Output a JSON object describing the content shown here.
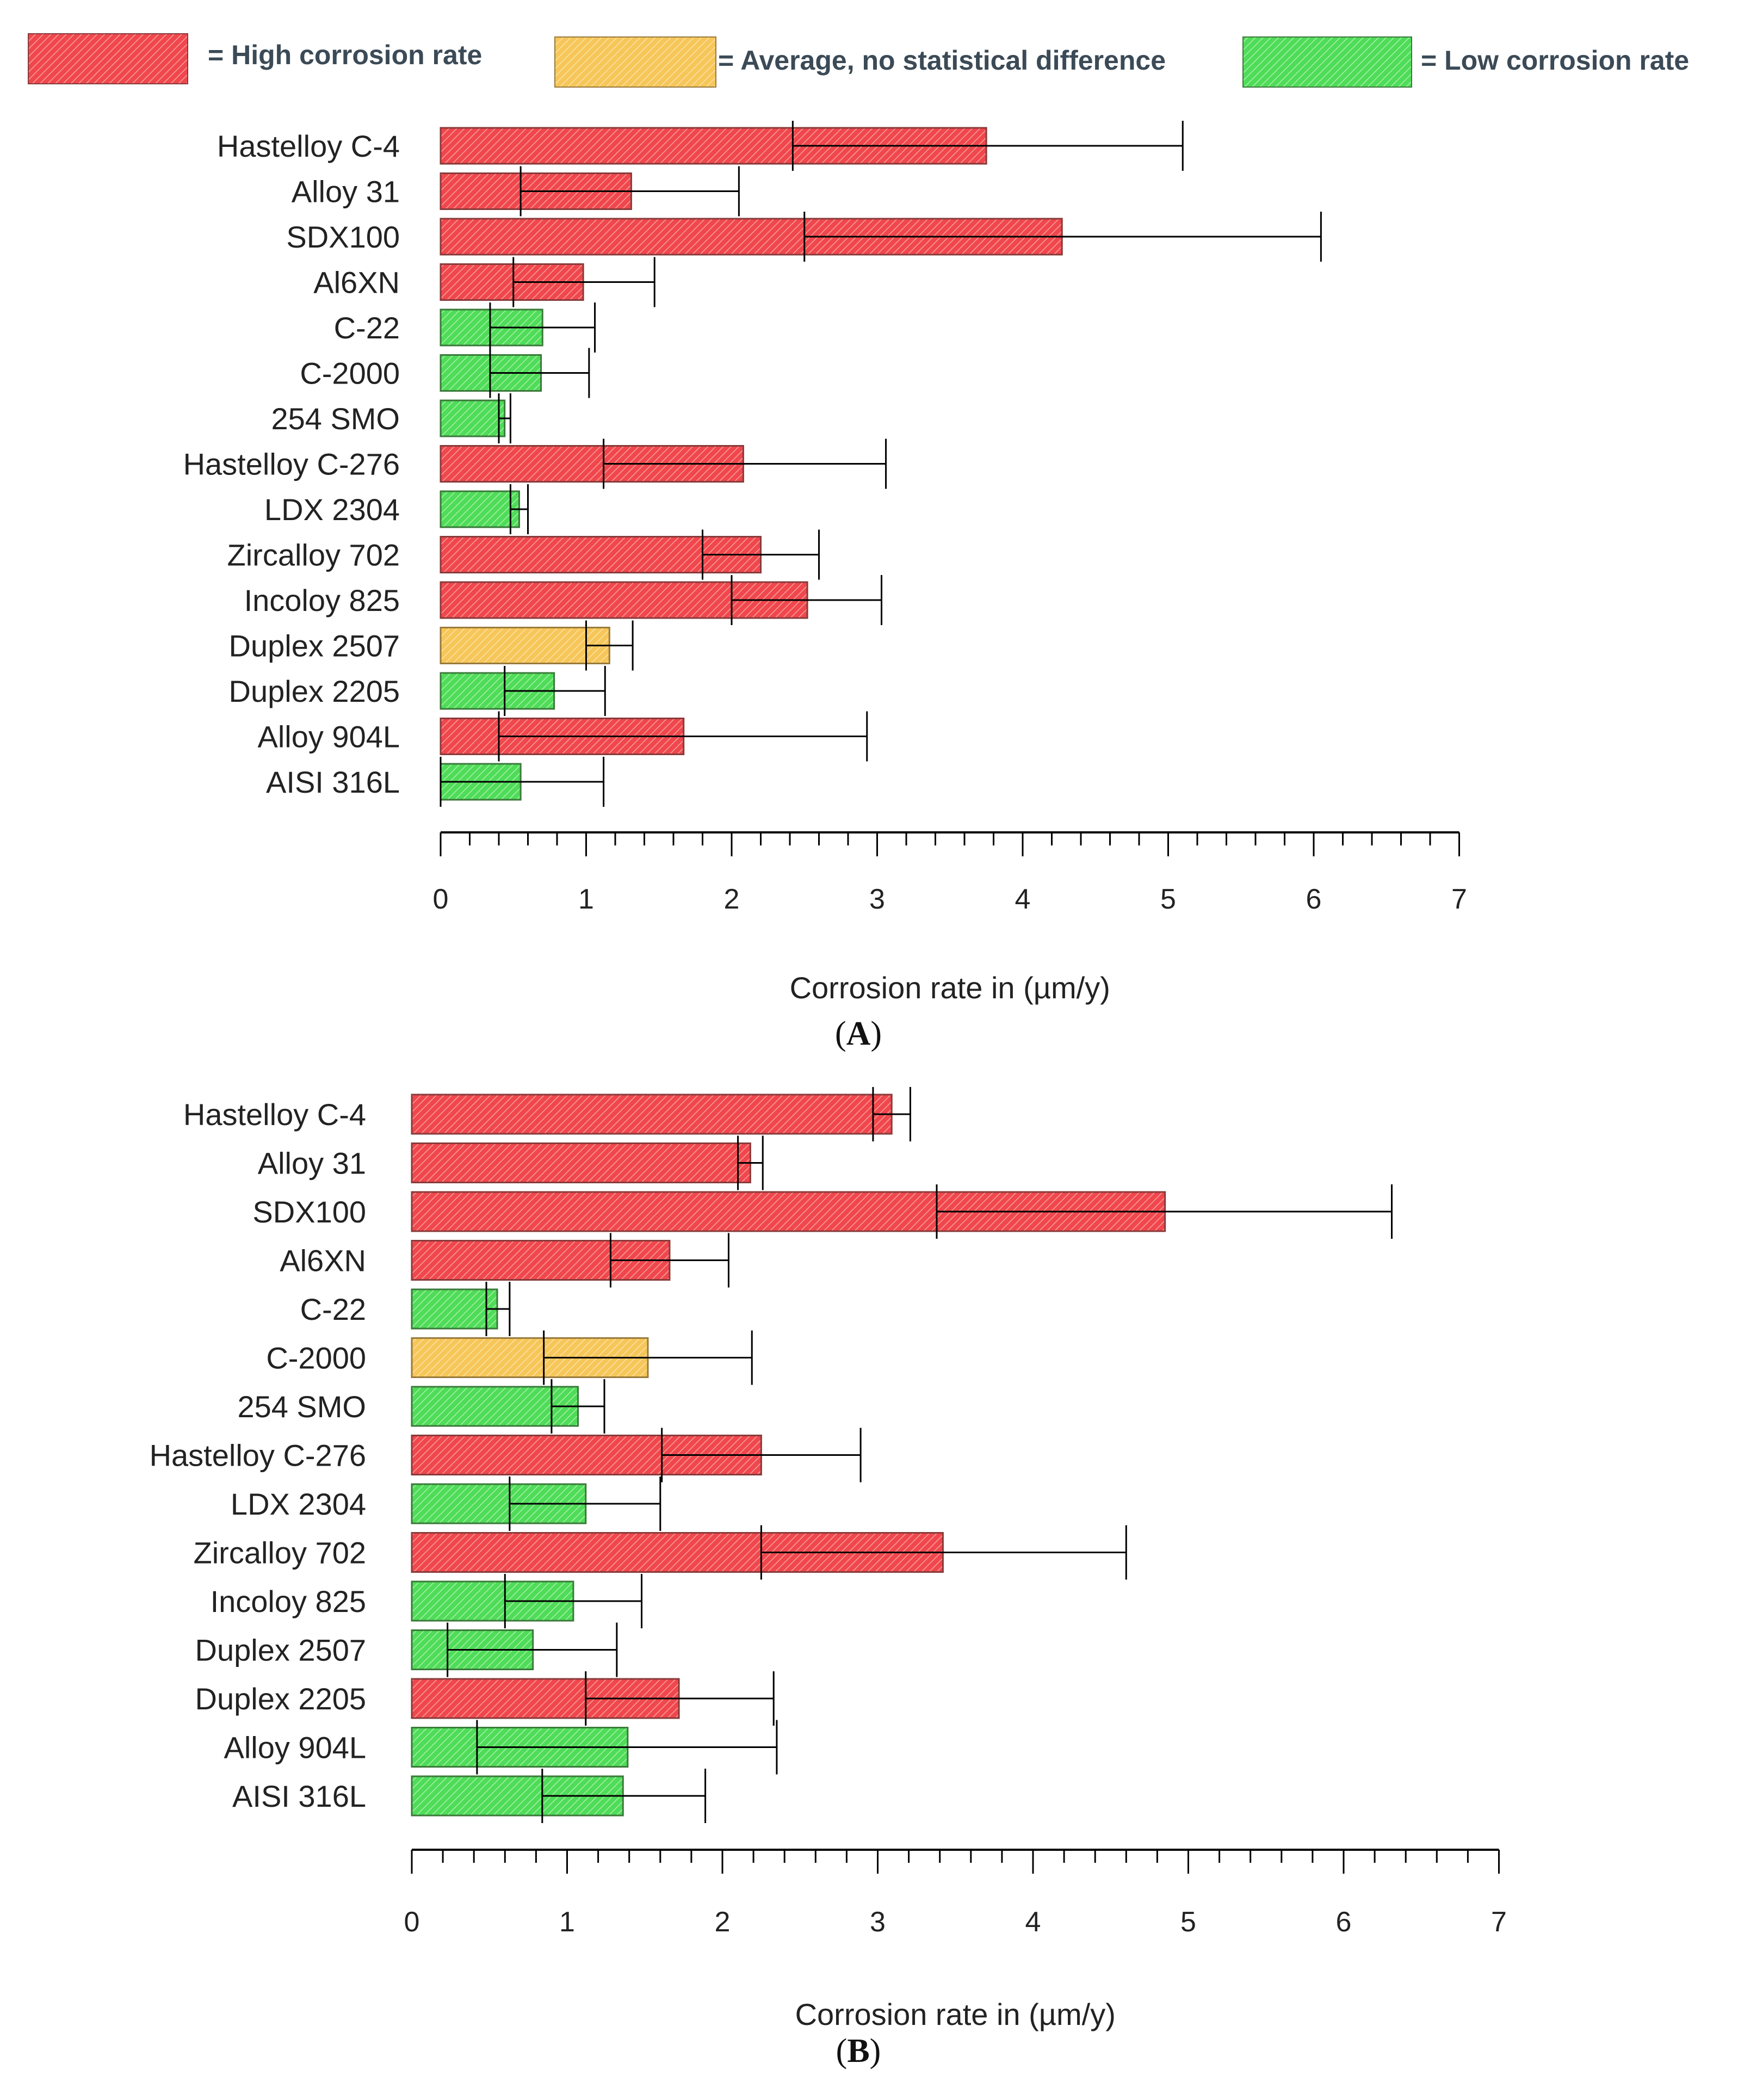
{
  "colors": {
    "high": "#f0474d",
    "average": "#f7c659",
    "low": "#4fdc58",
    "high_border": "#8a3a3a",
    "average_border": "#9a7a3a",
    "low_border": "#3a7a3a"
  },
  "legend": [
    {
      "key": "high",
      "label": "= High corrosion rate"
    },
    {
      "key": "average",
      "label": "= Average, no statistical difference"
    },
    {
      "key": "low",
      "label": "= Low corrosion rate"
    }
  ],
  "chart_data": [
    {
      "type": "bar",
      "orientation": "horizontal",
      "panel_label": "A",
      "xlabel": "Corrosion rate in (µm/y)",
      "xlim": [
        0,
        7
      ],
      "xticks": [
        "0",
        "1",
        "2",
        "3",
        "4",
        "5",
        "6",
        "7"
      ],
      "categories": [
        "Hastelloy C-4",
        "Alloy 31",
        "SDX100",
        "Al6XN",
        "C-22",
        "C-2000",
        "254 SMO",
        "Hastelloy C-276",
        "LDX 2304",
        "Zircalloy 702",
        "Incoloy 825",
        "Duplex 2507",
        "Duplex 2205",
        "Alloy 904L",
        "AISI 316L"
      ],
      "values": [
        3.75,
        1.31,
        4.27,
        0.98,
        0.7,
        0.69,
        0.44,
        2.08,
        0.54,
        2.2,
        2.52,
        1.16,
        0.78,
        1.67,
        0.55
      ],
      "error_low": [
        2.42,
        0.55,
        2.5,
        0.5,
        0.34,
        0.34,
        0.4,
        1.12,
        0.48,
        1.8,
        2.0,
        1.0,
        0.44,
        0.4,
        0.0
      ],
      "error_high": [
        5.1,
        2.05,
        6.05,
        1.47,
        1.06,
        1.02,
        0.48,
        3.06,
        0.6,
        2.6,
        3.03,
        1.32,
        1.13,
        2.93,
        1.12
      ],
      "rating": [
        "high",
        "high",
        "high",
        "high",
        "low",
        "low",
        "low",
        "high",
        "low",
        "high",
        "high",
        "average",
        "low",
        "high",
        "low"
      ]
    },
    {
      "type": "bar",
      "orientation": "horizontal",
      "panel_label": "B",
      "xlabel": "Corrosion rate in (µm/y)",
      "xlim": [
        0,
        7
      ],
      "xticks": [
        "0",
        "1",
        "2",
        "3",
        "4",
        "5",
        "6",
        "7"
      ],
      "categories": [
        "Hastelloy C-4",
        "Alloy 31",
        "SDX100",
        "Al6XN",
        "C-22",
        "C-2000",
        "254 SMO",
        "Hastelloy C-276",
        "LDX 2304",
        "Zircalloy 702",
        "Incoloy 825",
        "Duplex 2507",
        "Duplex 2205",
        "Alloy 904L",
        "AISI 316L"
      ],
      "values": [
        3.09,
        2.18,
        4.85,
        1.66,
        0.55,
        1.52,
        1.07,
        2.25,
        1.12,
        3.42,
        1.04,
        0.78,
        1.72,
        1.39,
        1.36
      ],
      "error_low": [
        2.97,
        2.1,
        3.38,
        1.28,
        0.48,
        0.85,
        0.9,
        1.61,
        0.63,
        2.25,
        0.6,
        0.23,
        1.12,
        0.42,
        0.84
      ],
      "error_high": [
        3.21,
        2.26,
        6.31,
        2.04,
        0.63,
        2.19,
        1.24,
        2.89,
        1.6,
        4.6,
        1.48,
        1.32,
        2.33,
        2.35,
        1.89
      ],
      "rating": [
        "high",
        "high",
        "high",
        "high",
        "low",
        "average",
        "low",
        "high",
        "low",
        "high",
        "low",
        "low",
        "high",
        "low",
        "low"
      ]
    }
  ]
}
